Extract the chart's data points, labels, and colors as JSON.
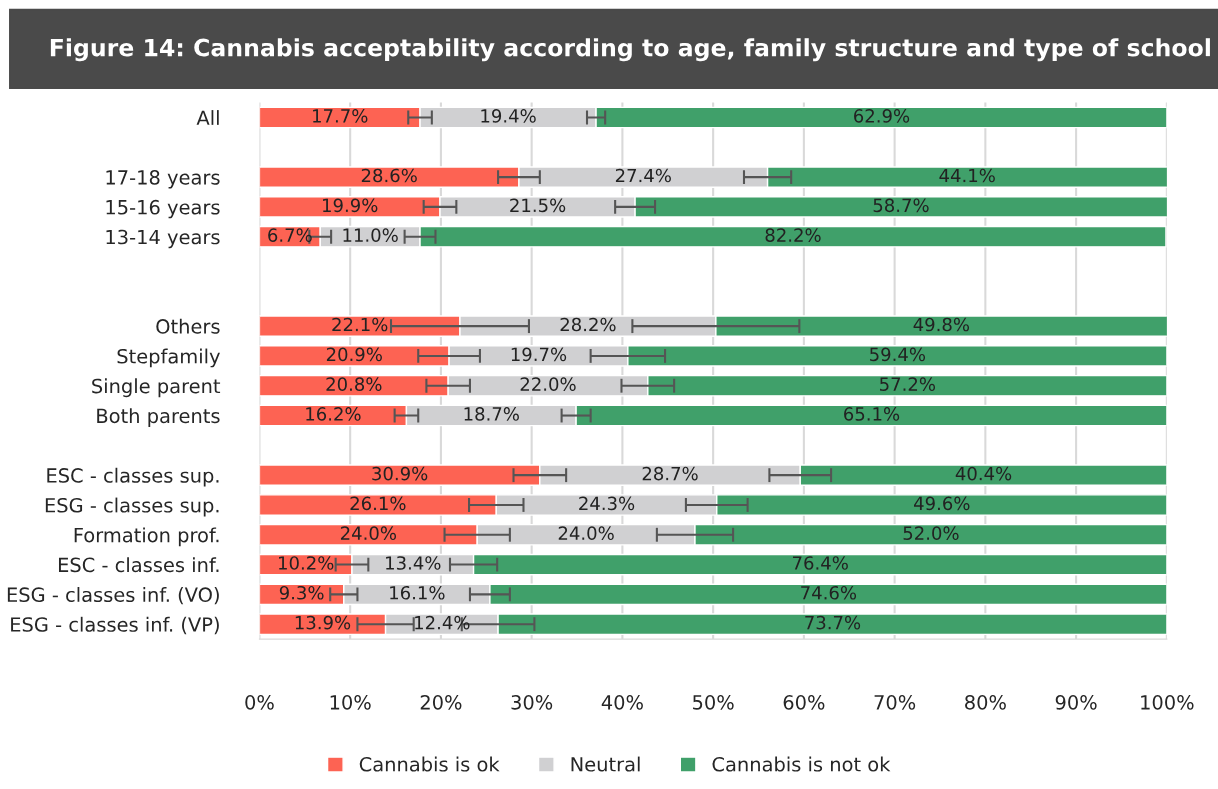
{
  "chart_data": {
    "type": "bar",
    "orientation": "horizontal",
    "stacked": true,
    "title": "Figure 14: Cannabis acceptability according to age, family structure and type of school",
    "categories": [
      "All",
      null,
      "17-18 years",
      "15-16 years",
      "13-14 years",
      null,
      null,
      "Others",
      "Stepfamily",
      "Single parent",
      "Both parents",
      null,
      "ESC - classes sup.",
      "ESG - classes sup.",
      "Formation prof.",
      "ESC - classes inf.",
      "ESG - classes inf. (VO)",
      "ESG - classes inf. (VP)"
    ],
    "series": [
      {
        "name": "Cannabis is ok",
        "color": "#fd6353",
        "values": [
          17.7,
          null,
          28.6,
          19.9,
          6.7,
          null,
          null,
          22.1,
          20.9,
          20.8,
          16.2,
          null,
          30.9,
          26.1,
          24.0,
          10.2,
          9.3,
          13.9
        ],
        "value_labels": [
          "17.7%",
          null,
          "28.6%",
          "19.9%",
          "6.7%",
          null,
          null,
          "22.1%",
          "20.9%",
          "20.8%",
          "16.2%",
          null,
          "30.9%",
          "26.1%",
          "24.0%",
          "10.2%",
          "9.3%",
          "13.9%"
        ],
        "errors": [
          1.3,
          null,
          2.3,
          1.8,
          1.2,
          null,
          null,
          7.6,
          3.4,
          2.4,
          1.3,
          null,
          2.9,
          3.0,
          3.6,
          1.8,
          1.5,
          3.1
        ]
      },
      {
        "name": "Neutral",
        "color": "#d0d0d2",
        "values": [
          19.4,
          null,
          27.4,
          21.5,
          11.0,
          null,
          null,
          28.2,
          19.7,
          22.0,
          18.7,
          null,
          28.7,
          24.3,
          24.0,
          13.4,
          16.1,
          12.4
        ],
        "value_labels": [
          "19.4%",
          null,
          "27.4%",
          "21.5%",
          "11.0%",
          null,
          null,
          "28.2%",
          "19.7%",
          "22.0%",
          "18.7%",
          null,
          "28.7%",
          "24.3%",
          "24.0%",
          "13.4%",
          "16.1%",
          "12.4%"
        ],
        "errors": [
          1.0,
          null,
          2.6,
          2.2,
          1.7,
          null,
          null,
          9.2,
          4.1,
          2.9,
          1.6,
          null,
          3.4,
          3.4,
          4.2,
          2.6,
          2.2,
          4.0
        ]
      },
      {
        "name": "Cannabis is not ok",
        "color": "#40a06a",
        "values": [
          62.9,
          null,
          44.1,
          58.7,
          82.2,
          null,
          null,
          49.8,
          59.4,
          57.2,
          65.1,
          null,
          40.4,
          49.6,
          52.0,
          76.4,
          74.6,
          73.7
        ],
        "value_labels": [
          "62.9%",
          null,
          "44.1%",
          "58.7%",
          "82.2%",
          null,
          null,
          "49.8%",
          "59.4%",
          "57.2%",
          "65.1%",
          null,
          "40.4%",
          "49.6%",
          "52.0%",
          "76.4%",
          "74.6%",
          "73.7%"
        ]
      }
    ],
    "xlim": [
      0,
      100
    ],
    "xticks": [
      {
        "value": 0,
        "label": "0%"
      },
      {
        "value": 10,
        "label": "10%"
      },
      {
        "value": 20,
        "label": "20%"
      },
      {
        "value": 30,
        "label": "30%"
      },
      {
        "value": 40,
        "label": "40%"
      },
      {
        "value": 50,
        "label": "50%"
      },
      {
        "value": 60,
        "label": "60%"
      },
      {
        "value": 70,
        "label": "70%"
      },
      {
        "value": 80,
        "label": "80%"
      },
      {
        "value": 90,
        "label": "90%"
      },
      {
        "value": 100,
        "label": "100%"
      }
    ],
    "grid": "x",
    "legend": "bottom"
  }
}
